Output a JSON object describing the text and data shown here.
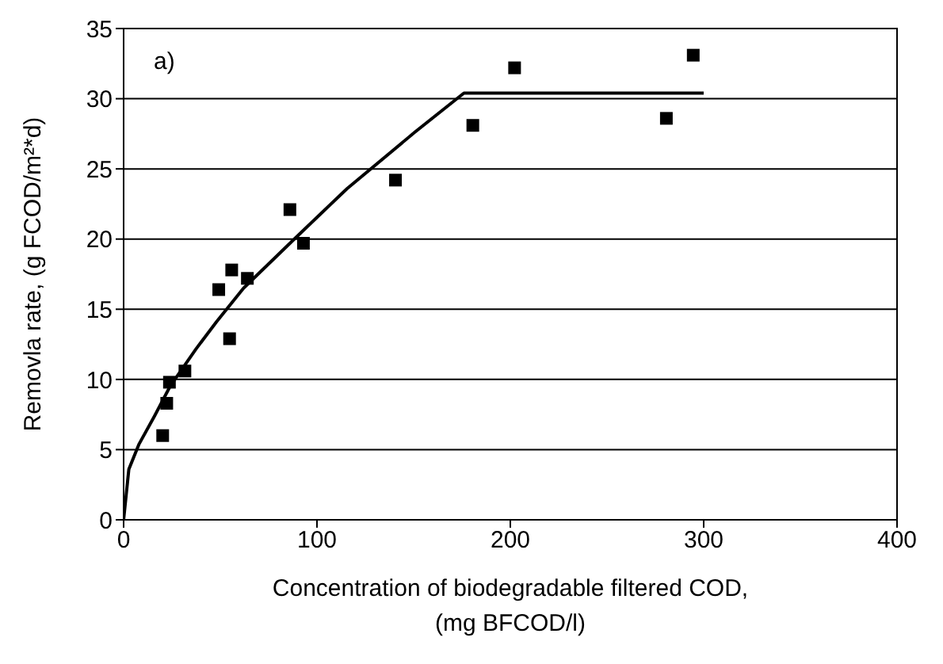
{
  "chart_data": {
    "type": "scatter",
    "xlabel": "Concentration of biodegradable filtered COD,\n(mg BFCOD/l)",
    "ylabel": "Removla rate, (g FCOD/m²*d)",
    "annotations": [
      "a)"
    ],
    "xlim": [
      0,
      400
    ],
    "xticks": [
      0,
      100,
      200,
      300,
      400
    ],
    "ylim": [
      0,
      35
    ],
    "yticks": [
      0,
      5,
      10,
      15,
      20,
      25,
      30,
      35
    ],
    "grid": "y",
    "marker": "square",
    "series": [
      {
        "color": "#000000",
        "x": [
          20.2,
          22.3,
          23.7,
          31.7,
          49.2,
          55.9,
          54.8,
          64.0,
          86.0,
          93.0,
          140.6,
          180.6,
          202.2,
          280.7,
          294.6
        ],
        "values": [
          6.0,
          8.3,
          9.8,
          10.6,
          16.4,
          17.8,
          12.9,
          17.2,
          22.1,
          19.7,
          24.2,
          28.1,
          32.2,
          28.6,
          33.1
        ]
      },
      {
        "type": "line",
        "color": "#000000",
        "marker": "none",
        "line_style": "solid",
        "x": [
          0,
          2.7,
          8,
          16,
          24,
          37.6,
          48,
          62,
          89,
          115.6,
          150.5,
          176,
          300
        ],
        "values": [
          0,
          3.6,
          5.4,
          7.4,
          9.5,
          12.2,
          14.1,
          16.5,
          20.1,
          23.6,
          27.6,
          30.4,
          30.4
        ]
      }
    ]
  }
}
